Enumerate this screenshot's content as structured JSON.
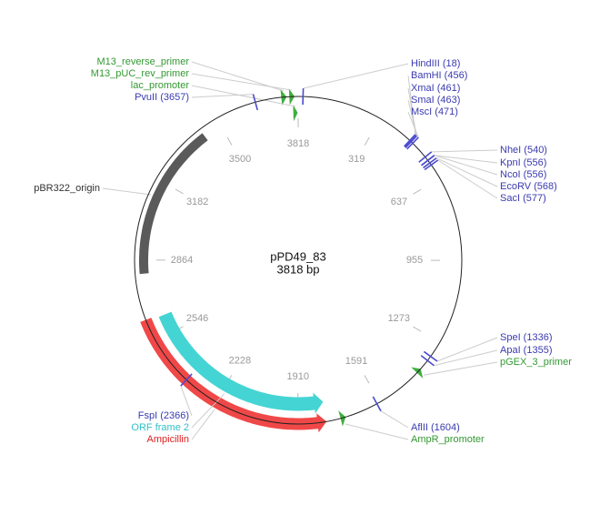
{
  "map": {
    "name": "pPD49_83",
    "size_label": "3818 bp",
    "length": 3818,
    "ruler": [
      {
        "value": 0,
        "label": "3818"
      },
      319,
      637,
      955,
      1273,
      1591,
      1910,
      2228,
      2546,
      2864,
      3182,
      3500
    ],
    "sites": [
      {
        "label": "HindIII (18)",
        "position": 18
      },
      {
        "label": "BamHI (456)",
        "position": 456
      },
      {
        "label": "XmaI (461)",
        "position": 461
      },
      {
        "label": "SmaI (463)",
        "position": 463
      },
      {
        "label": "MscI (471)",
        "position": 471
      },
      {
        "label": "NheI (540)",
        "position": 540
      },
      {
        "label": "KpnI (556)",
        "position": 556
      },
      {
        "label": "NcoI (556)",
        "position": 556
      },
      {
        "label": "EcoRV (568)",
        "position": 568
      },
      {
        "label": "SacI (577)",
        "position": 577
      },
      {
        "label": "SpeI (1336)",
        "position": 1336
      },
      {
        "label": "ApaI (1355)",
        "position": 1355
      },
      {
        "label": "AflII (1604)",
        "position": 1604
      },
      {
        "label": "FspI (2366)",
        "position": 2366
      },
      {
        "label": "PvuII (3657)",
        "position": 3657
      }
    ],
    "features": [
      {
        "label": "pBR322_origin",
        "start": 2811,
        "end": 3425,
        "color": "#5a5a5a",
        "label_color": "#333333",
        "direction": "none"
      },
      {
        "label": "Ampicillin",
        "start": 1803,
        "end": 2637,
        "color": "#f04848",
        "label_color": "#e02020",
        "direction": "reverse"
      },
      {
        "label": "ORF frame 2",
        "start": 1803,
        "end": 2629,
        "color": "#45d4d4",
        "label_color": "#30c0c8",
        "direction": "reverse"
      },
      {
        "label": "M13_reverse_primer",
        "start": 3755,
        "end": 3775,
        "color": "#3fae3f",
        "label_color": "#339933",
        "direction": "forward"
      },
      {
        "label": "M13_pUC_rev_primer",
        "start": 3785,
        "end": 3805,
        "color": "#3fae3f",
        "label_color": "#339933",
        "direction": "forward"
      },
      {
        "label": "lac_promoter",
        "start": 3798,
        "end": 3816,
        "color": "#3fae3f",
        "label_color": "#339933",
        "direction": "forward"
      },
      {
        "label": "pGEX_3_primer",
        "start": 1395,
        "end": 1415,
        "color": "#3fae3f",
        "label_color": "#339933",
        "direction": "reverse"
      },
      {
        "label": "AmpR_promoter",
        "start": 1730,
        "end": 1750,
        "color": "#3fae3f",
        "label_color": "#339933",
        "direction": "reverse"
      }
    ]
  }
}
